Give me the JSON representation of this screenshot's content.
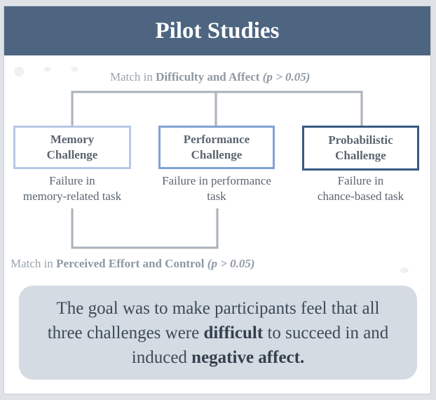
{
  "title": "Pilot Studies",
  "top_caption": {
    "prefix": "Match in ",
    "bold": "Difficulty and Affect",
    "stat": "(p > 0.05)"
  },
  "challenges": [
    {
      "name_line1": "Memory",
      "name_line2": "Challenge",
      "desc_line1": "Failure in",
      "desc_line2": "memory-related task"
    },
    {
      "name_line1": "Performance",
      "name_line2": "Challenge",
      "desc_line1": "Failure in performance",
      "desc_line2": "task"
    },
    {
      "name_line1": "Probabilistic",
      "name_line2": "Challenge",
      "desc_line1": "Failure in",
      "desc_line2": "chance-based task"
    }
  ],
  "bottom_caption": {
    "prefix": "Match in ",
    "bold": "Perceived Effort and Control",
    "stat": "(p > 0.05)"
  },
  "goal": {
    "part1": "The goal was to make participants feel that all three challenges were ",
    "bold1": "difficult",
    "part2": " to succeed in and induced ",
    "bold2": "negative affect."
  },
  "colors": {
    "header": "#4d6580",
    "memory_border": "#b5c9e6",
    "performance_border": "#7fa3d3",
    "probabilistic_border": "#3a5a82",
    "goal_bg": "#d4dbe3",
    "connector": "#a9b1ba"
  }
}
